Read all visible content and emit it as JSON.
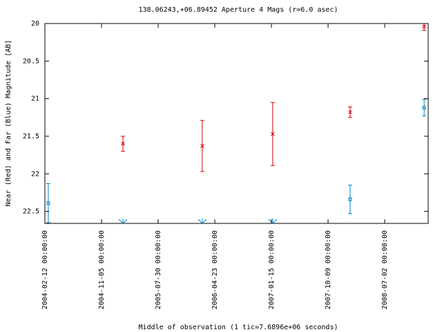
{
  "chart_data": {
    "type": "scatter",
    "title": "138.06243,+06.89452   Aperture 4 Mags (r=6.0 asec)",
    "x_label": "Middle of observation (1 tic=7.6896e+06 seconds)",
    "y_label": "Near (Red) and Far (Blue) Magnitude [AB]",
    "xlim": [
      "2004-02-12 00:00:00",
      "2009-01-23 00:00:00"
    ],
    "xticks": [
      "2004-02-12 00:00:00",
      "2004-11-05 00:00:00",
      "2005-07-30 00:00:00",
      "2006-04-23 00:00:00",
      "2007-01-15 00:00:00",
      "2007-10-09 00:00:00",
      "2008-07-02 00:00:00"
    ],
    "ylim": [
      20,
      22.66
    ],
    "y_reversed": true,
    "yticks": [
      20,
      20.5,
      21,
      21.5,
      22,
      22.5
    ],
    "series": [
      {
        "color": "#d00000",
        "marker": "x",
        "x": [
          "2005-02-14 00:00:00",
          "2006-02-23 00:00:00",
          "2007-01-21 00:00:00",
          "2008-01-21 00:00:00",
          "2009-01-04 00:00:00"
        ],
        "values": [
          21.6,
          21.63,
          21.47,
          21.18,
          20.04
        ],
        "errors": [
          0.1,
          0.34,
          0.42,
          0.07,
          0.05
        ]
      },
      {
        "color": "#0080c0",
        "marker": "square",
        "x": [
          "2004-02-28 00:00:00",
          "2008-01-21 00:00:00",
          "2009-01-04 00:00:00"
        ],
        "values": [
          22.39,
          22.34,
          21.12
        ],
        "errors": [
          0.26,
          0.19,
          0.11
        ]
      },
      {
        "color": "#0080c0",
        "marker": "asterisk",
        "x": [
          "2005-02-14 00:00:00",
          "2006-02-23 00:00:00",
          "2007-01-21 00:00:00"
        ],
        "values": [
          22.66,
          22.66,
          22.66
        ]
      }
    ]
  }
}
